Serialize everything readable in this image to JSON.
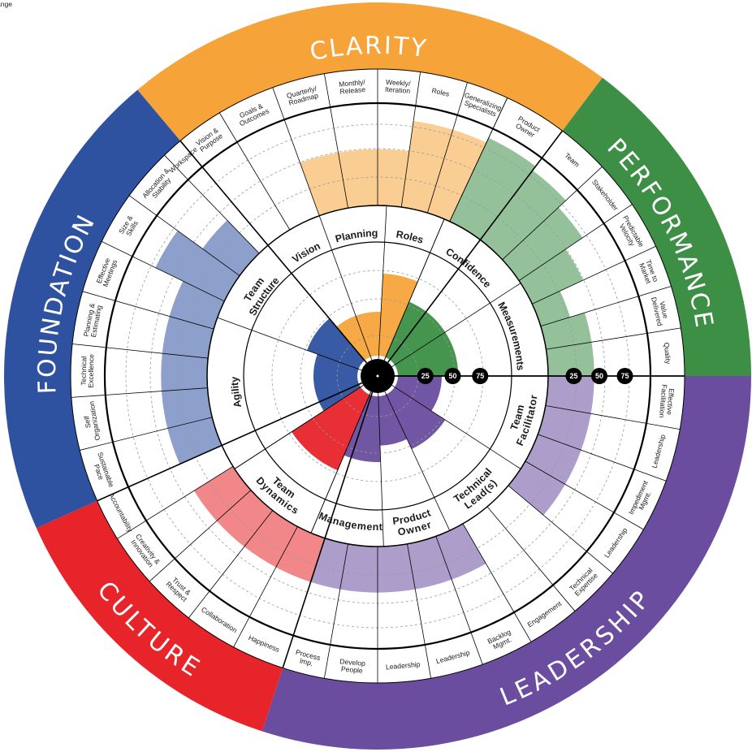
{
  "chart_data": {
    "type": "radial-bar",
    "scale_ticks": [
      "25",
      "50",
      "75"
    ],
    "categories": [
      {
        "name": "CLARITY",
        "color": "#f6a43a",
        "inner": [
          {
            "label": "Vision",
            "value": 40
          },
          {
            "label": "Planning",
            "value": 40
          },
          {
            "label": "Roles",
            "value": 75
          }
        ],
        "outer": [
          {
            "label": "Vision & Purpose",
            "value": 0
          },
          {
            "label": "Goals & Outcomes",
            "value": 0
          },
          {
            "label": "Quarterly/ Roadmap",
            "value": 55
          },
          {
            "label": "Monthly/ Release",
            "value": 55
          },
          {
            "label": "Weekly/ Iteration",
            "value": 55
          },
          {
            "label": "Roles",
            "value": 85
          },
          {
            "label": "Generalizing Specialists",
            "value": 85
          }
        ]
      },
      {
        "name": "PERFORMANCE",
        "color": "#3c8f45",
        "inner": [
          {
            "label": "Confidence",
            "value": 55
          },
          {
            "label": "Measurements",
            "value": 55
          }
        ],
        "outer": [
          {
            "label": "Product Owner",
            "value": 90
          },
          {
            "label": "Team",
            "value": 85
          },
          {
            "label": "Stakeholder",
            "value": 75
          },
          {
            "label": "Predictable Velocity",
            "value": 55
          },
          {
            "label": "Time to Market",
            "value": 30
          },
          {
            "label": "Value Delivered",
            "value": 45
          },
          {
            "label": "Quality",
            "value": 45
          },
          {
            "label": "Response to Change",
            "value": 50
          }
        ]
      },
      {
        "name": "LEADERSHIP",
        "color": "#6a4d9f",
        "inner": [
          {
            "label": "Team Facilitator",
            "value": 40
          },
          {
            "label": "Technical Lead(s)",
            "value": 55
          },
          {
            "label": "Product Owner",
            "value": 45
          },
          {
            "label": "Management",
            "value": 60
          }
        ],
        "outer": [
          {
            "label": "Effective Facilitation",
            "value": 45
          },
          {
            "label": "Leadership",
            "value": 45
          },
          {
            "label": "Impediment Mgmt.",
            "value": 45
          },
          {
            "label": "Leadership",
            "value": 45
          },
          {
            "label": "Technical Expertise",
            "value": 0
          },
          {
            "label": "Engagement",
            "value": 0
          },
          {
            "label": "Backlog Mgmt.",
            "value": 45
          },
          {
            "label": "Leadership",
            "value": 45
          },
          {
            "label": "Leadership",
            "value": 45
          },
          {
            "label": "Develop People",
            "value": 45
          },
          {
            "label": "Process Imp.",
            "value": 45
          }
        ]
      },
      {
        "name": "CULTURE",
        "color": "#e8242b",
        "inner": [
          {
            "label": "Team Dynamics",
            "value": 75
          }
        ],
        "outer": [
          {
            "label": "Happiness",
            "value": 45
          },
          {
            "label": "Collaboration",
            "value": 45
          },
          {
            "label": "Trust & Respect",
            "value": 45
          },
          {
            "label": "Creativity & Innovation",
            "value": 45
          },
          {
            "label": "Accountability",
            "value": 0
          }
        ]
      },
      {
        "name": "FOUNDATION",
        "color": "#2f52a0",
        "inner": [
          {
            "label": "Agility",
            "value": 40
          },
          {
            "label": "Team Structure",
            "value": 50
          }
        ],
        "outer": [
          {
            "label": "Sustainable Pace",
            "value": 45
          },
          {
            "label": "Self Organization",
            "value": 45
          },
          {
            "label": "Technical Excellence",
            "value": 45
          },
          {
            "label": "Planning & Estimating",
            "value": 45
          },
          {
            "label": "Effective Meetings",
            "value": 45
          },
          {
            "label": "Size & Skills",
            "value": 75
          },
          {
            "label": "Allocation & Stability",
            "value": 45
          },
          {
            "label": "Workspace",
            "value": 0
          }
        ]
      }
    ]
  }
}
